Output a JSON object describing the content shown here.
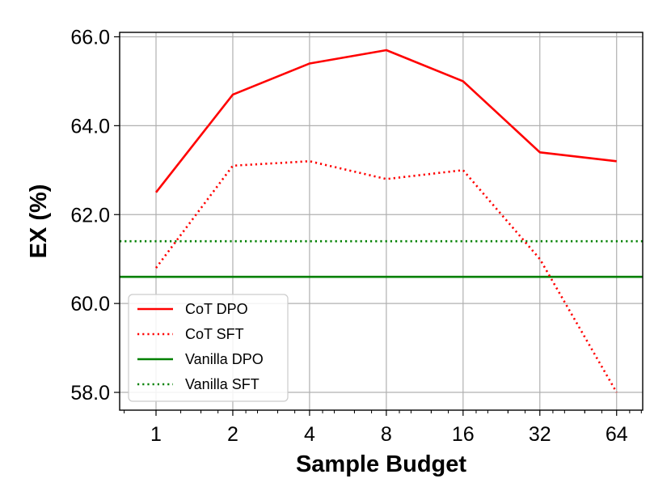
{
  "chart_data": {
    "type": "line",
    "title": "",
    "xlabel": "Sample Budget",
    "ylabel": "EX (%)",
    "x_scale": "log2",
    "x": [
      1,
      2,
      4,
      8,
      16,
      32,
      64
    ],
    "x_tick_labels": [
      "1",
      "2",
      "4",
      "8",
      "16",
      "32",
      "64"
    ],
    "xlim": [
      0.72,
      81
    ],
    "ylim": [
      57.6,
      66.1
    ],
    "y_ticks": [
      58.0,
      60.0,
      62.0,
      64.0,
      66.0
    ],
    "y_tick_labels": [
      "58.0",
      "60.0",
      "62.0",
      "64.0",
      "66.0"
    ],
    "grid": true,
    "legend_position": "lower-left",
    "series": [
      {
        "name": "CoT DPO",
        "kind": "line",
        "color": "#ff0000",
        "style": "solid",
        "values": [
          62.5,
          64.7,
          65.4,
          65.7,
          65.0,
          63.4,
          63.2
        ]
      },
      {
        "name": "CoT SFT",
        "kind": "line",
        "color": "#ff0000",
        "style": "dotted",
        "values": [
          60.8,
          63.1,
          63.2,
          62.8,
          63.0,
          61.0,
          58.0
        ]
      },
      {
        "name": "Vanilla DPO",
        "kind": "hline",
        "color": "#008000",
        "style": "solid",
        "value": 60.6
      },
      {
        "name": "Vanilla SFT",
        "kind": "hline",
        "color": "#008000",
        "style": "dotted",
        "value": 61.4
      }
    ]
  }
}
